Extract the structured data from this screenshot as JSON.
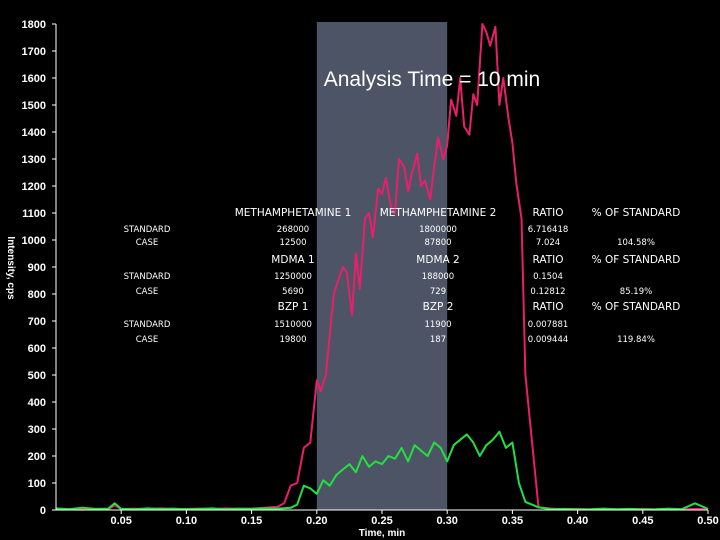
{
  "chart_data": {
    "type": "line",
    "title": "Analysis Time = 10 min",
    "xlabel": "Time, min",
    "ylabel": "Intensity, cps",
    "xlim": [
      0.0,
      0.5
    ],
    "ylim": [
      0,
      1800
    ],
    "xticks": [
      "0.05",
      "0.10",
      "0.15",
      "0.20",
      "0.25",
      "0.30",
      "0.35",
      "0.40",
      "0.45",
      "0.50"
    ],
    "yticks": [
      "0",
      "100",
      "200",
      "300",
      "400",
      "500",
      "600",
      "700",
      "800",
      "900",
      "1000",
      "1100",
      "1200",
      "1300",
      "1400",
      "1500",
      "1600",
      "1700",
      "1800"
    ],
    "highlight_window": [
      0.2,
      0.3
    ],
    "grid": false,
    "background": "#000000",
    "highlight_color": "#5a6378",
    "series": [
      {
        "color": "#e8206a",
        "x": [
          0.0,
          0.01,
          0.02,
          0.03,
          0.04,
          0.045,
          0.05,
          0.06,
          0.07,
          0.08,
          0.09,
          0.1,
          0.11,
          0.12,
          0.13,
          0.14,
          0.15,
          0.16,
          0.17,
          0.175,
          0.18,
          0.185,
          0.19,
          0.195,
          0.2,
          0.203,
          0.207,
          0.21,
          0.213,
          0.217,
          0.22,
          0.223,
          0.227,
          0.23,
          0.233,
          0.237,
          0.24,
          0.243,
          0.247,
          0.25,
          0.253,
          0.257,
          0.26,
          0.263,
          0.267,
          0.27,
          0.273,
          0.277,
          0.28,
          0.283,
          0.287,
          0.29,
          0.293,
          0.297,
          0.3,
          0.303,
          0.307,
          0.31,
          0.313,
          0.317,
          0.32,
          0.323,
          0.327,
          0.33,
          0.333,
          0.337,
          0.34,
          0.343,
          0.347,
          0.35,
          0.353,
          0.357,
          0.36,
          0.37,
          0.38,
          0.39,
          0.4,
          0.41,
          0.42,
          0.43,
          0.44,
          0.45,
          0.46,
          0.47,
          0.48,
          0.49,
          0.5
        ],
        "values": [
          2,
          3,
          1,
          4,
          2,
          18,
          3,
          5,
          2,
          6,
          3,
          4,
          5,
          3,
          6,
          4,
          5,
          8,
          12,
          25,
          90,
          100,
          230,
          250,
          480,
          440,
          500,
          650,
          800,
          860,
          900,
          880,
          720,
          950,
          820,
          1080,
          1100,
          1010,
          1190,
          1170,
          1230,
          1120,
          1100,
          1300,
          1270,
          1180,
          1250,
          1320,
          1200,
          1220,
          1150,
          1270,
          1380,
          1300,
          1350,
          1520,
          1460,
          1600,
          1420,
          1390,
          1540,
          1500,
          1800,
          1770,
          1720,
          1790,
          1500,
          1600,
          1450,
          1360,
          1210,
          1080,
          500,
          10,
          5,
          3,
          4,
          2,
          3,
          2,
          3,
          4,
          2,
          3,
          2,
          4,
          3
        ]
      },
      {
        "color": "#22e040",
        "x": [
          0.0,
          0.01,
          0.02,
          0.03,
          0.04,
          0.045,
          0.05,
          0.06,
          0.07,
          0.08,
          0.09,
          0.1,
          0.11,
          0.12,
          0.13,
          0.14,
          0.15,
          0.16,
          0.17,
          0.18,
          0.185,
          0.19,
          0.195,
          0.2,
          0.205,
          0.21,
          0.215,
          0.22,
          0.225,
          0.23,
          0.235,
          0.24,
          0.245,
          0.25,
          0.255,
          0.26,
          0.265,
          0.27,
          0.275,
          0.28,
          0.285,
          0.29,
          0.295,
          0.3,
          0.305,
          0.31,
          0.315,
          0.32,
          0.325,
          0.33,
          0.335,
          0.34,
          0.345,
          0.35,
          0.355,
          0.36,
          0.37,
          0.38,
          0.39,
          0.4,
          0.41,
          0.42,
          0.43,
          0.44,
          0.45,
          0.46,
          0.47,
          0.48,
          0.49,
          0.5
        ],
        "values": [
          6,
          3,
          8,
          4,
          5,
          25,
          4,
          3,
          6,
          4,
          5,
          3,
          4,
          6,
          3,
          5,
          4,
          6,
          5,
          8,
          20,
          90,
          80,
          60,
          110,
          90,
          130,
          150,
          170,
          140,
          200,
          160,
          180,
          170,
          200,
          190,
          230,
          180,
          240,
          220,
          200,
          250,
          230,
          180,
          240,
          260,
          280,
          250,
          200,
          240,
          260,
          290,
          230,
          250,
          100,
          30,
          10,
          3,
          4,
          2,
          3,
          5,
          3,
          4,
          2,
          3,
          5,
          3,
          25,
          4
        ]
      }
    ]
  },
  "table": {
    "sections": [
      {
        "headers": [
          "METHAMPHETAMINE 1",
          "METHAMPHETAMINE 2",
          "RATIO",
          "% OF STANDARD"
        ],
        "rows": [
          [
            "STANDARD",
            "268000",
            "1800000",
            "6.716418",
            ""
          ],
          [
            "CASE",
            "12500",
            "87800",
            "7.024",
            "104.58%"
          ]
        ]
      },
      {
        "headers": [
          "MDMA 1",
          "MDMA 2",
          "RATIO",
          "% OF STANDARD"
        ],
        "rows": [
          [
            "STANDARD",
            "1250000",
            "188000",
            "0.1504",
            ""
          ],
          [
            "CASE",
            "5690",
            "729",
            "0.12812",
            "85.19%"
          ]
        ]
      },
      {
        "headers": [
          "BZP 1",
          "BZP 2",
          "RATIO",
          "% OF STANDARD"
        ],
        "rows": [
          [
            "STANDARD",
            "1510000",
            "11900",
            "0.007881",
            ""
          ],
          [
            "CASE",
            "19800",
            "187",
            "0.009444",
            "119.84%"
          ]
        ]
      }
    ]
  }
}
